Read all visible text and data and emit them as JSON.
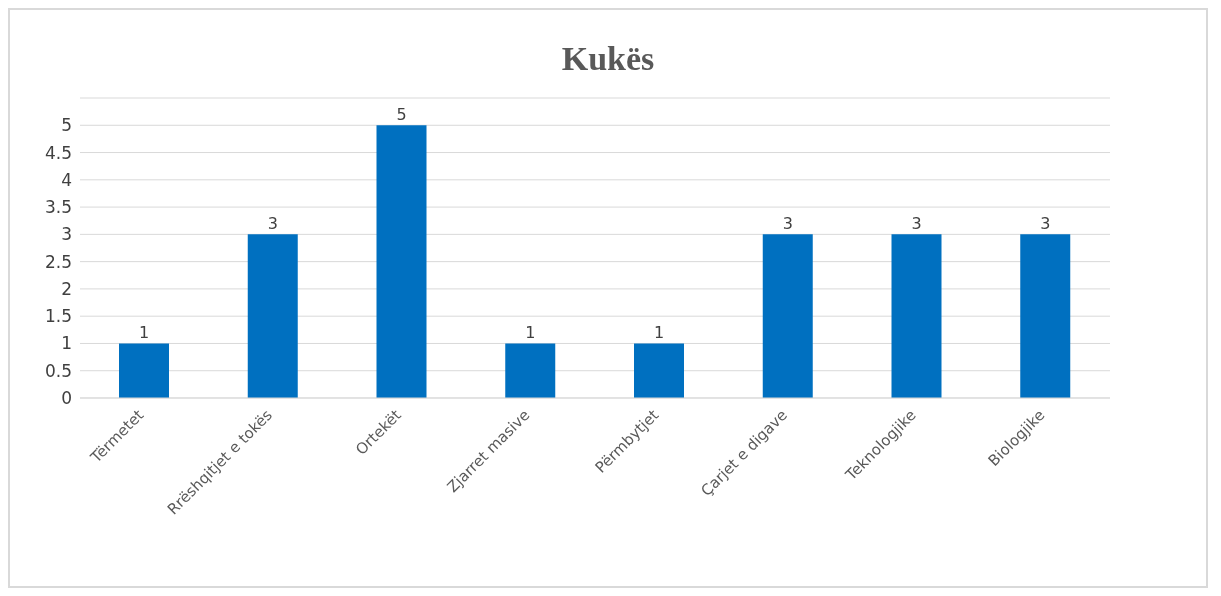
{
  "chart_data": {
    "type": "bar",
    "title": "Kukës",
    "categories": [
      "Tërmetet",
      "Rrëshqitjet e tokës",
      "Ortekët",
      "Zjarret masive",
      "Përmbytjet",
      "Çarjet e digave",
      "Teknologjike",
      "Biologjike"
    ],
    "values": [
      1,
      3,
      5,
      1,
      1,
      3,
      3,
      3
    ],
    "color": "#0070c0",
    "ylim": [
      0,
      5.5
    ],
    "yticks": [
      0,
      0.5,
      1,
      1.5,
      2,
      2.5,
      3,
      3.5,
      4,
      4.5,
      5
    ],
    "grid": "y",
    "data_labels": true
  }
}
